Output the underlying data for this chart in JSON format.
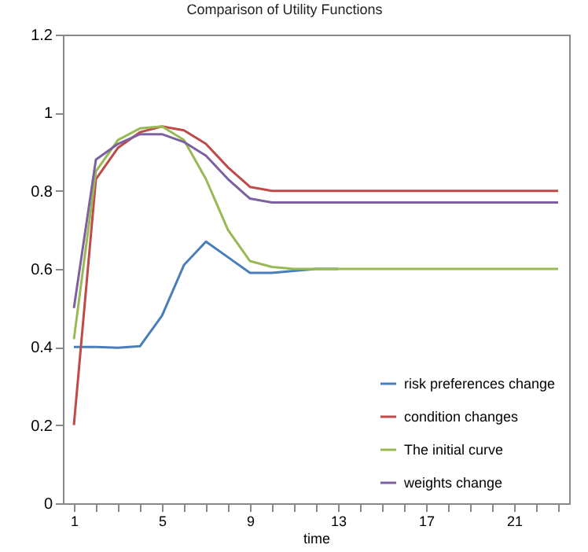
{
  "chart_data": {
    "type": "line",
    "title": "Comparison of Utility Functions",
    "xlabel": "time",
    "categories": [
      "1",
      null,
      null,
      null,
      "5",
      null,
      null,
      null,
      "9",
      null,
      null,
      null,
      "13",
      null,
      null,
      null,
      "17",
      null,
      null,
      null,
      "21",
      null,
      null
    ],
    "series": [
      {
        "name": "risk preferences change",
        "color": "#4a7ebb",
        "values": [
          0.4,
          0.4,
          0.398,
          0.402,
          0.48,
          0.61,
          0.67,
          0.63,
          0.59,
          0.59,
          0.595,
          0.6,
          0.6,
          null,
          null,
          null,
          null,
          null,
          null,
          null,
          null,
          null,
          null
        ]
      },
      {
        "name": "condition changes",
        "color": "#be4b48",
        "values": [
          0.2,
          0.83,
          0.91,
          0.95,
          0.965,
          0.955,
          0.92,
          0.86,
          0.81,
          0.8,
          0.8,
          0.8,
          0.8,
          0.8,
          0.8,
          0.8,
          0.8,
          0.8,
          0.8,
          0.8,
          0.8,
          0.8,
          0.8
        ]
      },
      {
        "name": "The initial curve",
        "color": "#98b954",
        "values": [
          0.42,
          0.85,
          0.93,
          0.96,
          0.965,
          0.93,
          0.83,
          0.7,
          0.62,
          0.605,
          0.6,
          0.6,
          0.6,
          0.6,
          0.6,
          0.6,
          0.6,
          0.6,
          0.6,
          0.6,
          0.6,
          0.6,
          0.6
        ]
      },
      {
        "name": "weights change",
        "color": "#7d60a0",
        "values": [
          0.5,
          0.88,
          0.92,
          0.945,
          0.945,
          0.925,
          0.89,
          0.83,
          0.78,
          0.77,
          0.77,
          0.77,
          0.77,
          0.77,
          0.77,
          0.77,
          0.77,
          0.77,
          0.77,
          0.77,
          0.77,
          0.77,
          0.77
        ]
      }
    ],
    "ylim": [
      0,
      1.2
    ],
    "yticks": [
      0,
      0.2,
      0.4,
      0.6,
      0.8,
      1,
      1.2
    ],
    "grid": false,
    "legend": "bottom right",
    "marker": "none",
    "line_style": "solid"
  }
}
